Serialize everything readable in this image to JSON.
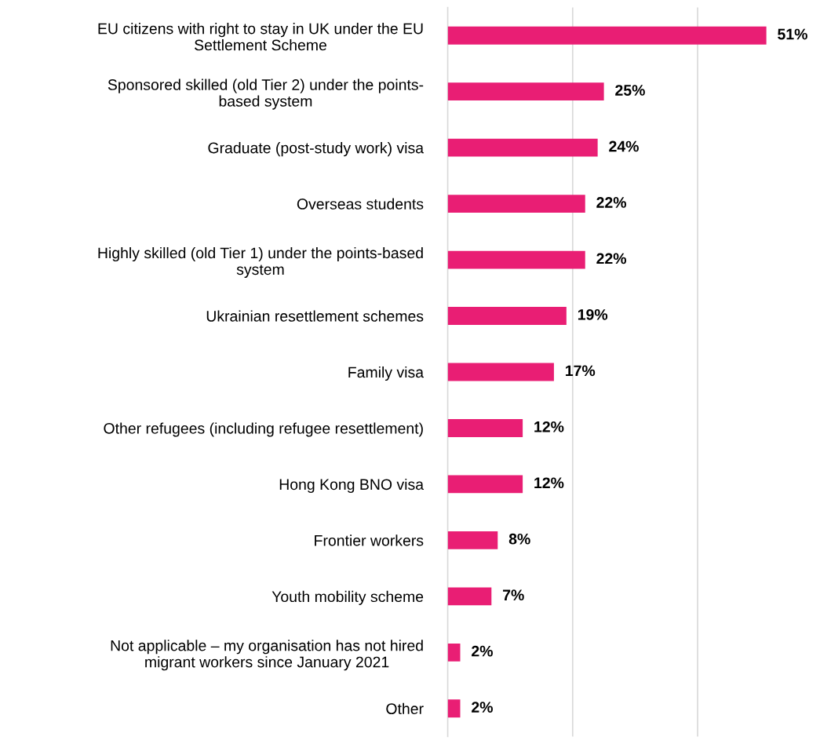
{
  "chart_data": {
    "type": "bar",
    "orientation": "horizontal",
    "categories": [
      "EU citizens with right to stay in UK under the EU\nSettlement Scheme",
      "Sponsored skilled (old Tier 2) under the points-\nbased system",
      "Graduate (post-study work) visa",
      "Overseas students",
      "Highly skilled (old Tier 1) under the points-based\nsystem",
      "Ukrainian resettlement schemes",
      "Family visa",
      "Other refugees (including refugee resettlement)",
      "Hong Kong BNO visa",
      "Frontier workers",
      "Youth mobility scheme",
      "Not applicable – my organisation has not hired\nmigrant workers since January 2021",
      "Other"
    ],
    "values": [
      51,
      25,
      24,
      22,
      22,
      19,
      17,
      12,
      12,
      8,
      7,
      2,
      2
    ],
    "value_labels": [
      "51%",
      "25%",
      "24%",
      "22%",
      "22%",
      "19%",
      "17%",
      "12%",
      "12%",
      "8%",
      "7%",
      "2%",
      "2%"
    ],
    "color": "#e91e74",
    "ref_lines": [
      {
        "axis": "x",
        "value": 20,
        "color": "#d9d9d9"
      },
      {
        "axis": "x",
        "value": 40,
        "color": "#d9d9d9"
      }
    ],
    "tick_labels": "y"
  }
}
